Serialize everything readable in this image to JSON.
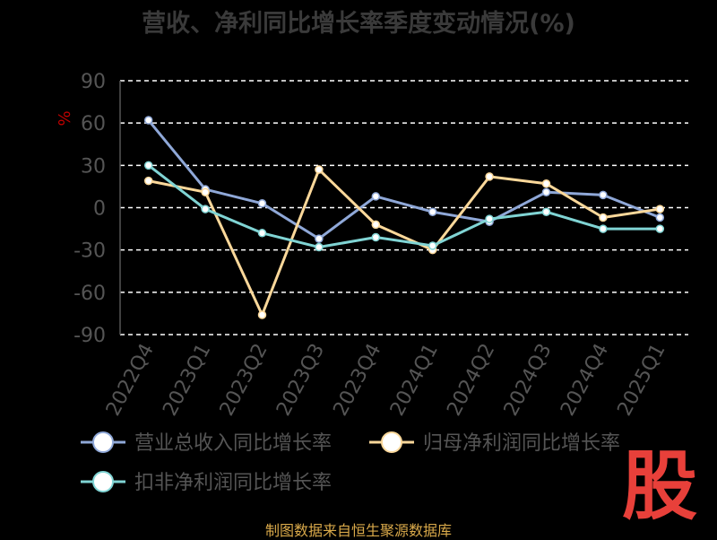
{
  "title": "营收、净利同比增长率季度变动情况(%)",
  "source_note": "制图数据来自恒生聚源数据库",
  "brand_mark": "股",
  "colors": {
    "axis_text": "#555555",
    "grid": "#ffffff",
    "unit": "#c00000"
  },
  "chart_data": {
    "type": "line",
    "title": "营收、净利同比增长率季度变动情况(%)",
    "ylabel": "%",
    "ylim": [
      -90,
      90
    ],
    "yticks": [
      -90,
      -60,
      -30,
      0,
      30,
      60,
      90
    ],
    "grid": "horizontal dashed",
    "legend_position": "bottom",
    "categories": [
      "2022Q4",
      "2023Q1",
      "2023Q2",
      "2023Q3",
      "2023Q4",
      "2024Q1",
      "2024Q2",
      "2024Q3",
      "2024Q4",
      "2025Q1"
    ],
    "series": [
      {
        "name": "营业总收入同比增长率",
        "color": "#8fa8d8",
        "values": [
          62,
          13,
          3,
          -22,
          8,
          -3,
          -10,
          11,
          9,
          -7
        ]
      },
      {
        "name": "归母净利润同比增长率",
        "color": "#fbd89a",
        "values": [
          19,
          11,
          -76,
          27,
          -12,
          -30,
          22,
          17,
          -7,
          -1
        ]
      },
      {
        "name": "扣非净利润同比增长率",
        "color": "#80d4d4",
        "values": [
          30,
          -1,
          -18,
          -28,
          -21,
          -27,
          -8,
          -3,
          -15,
          -15
        ]
      }
    ]
  }
}
